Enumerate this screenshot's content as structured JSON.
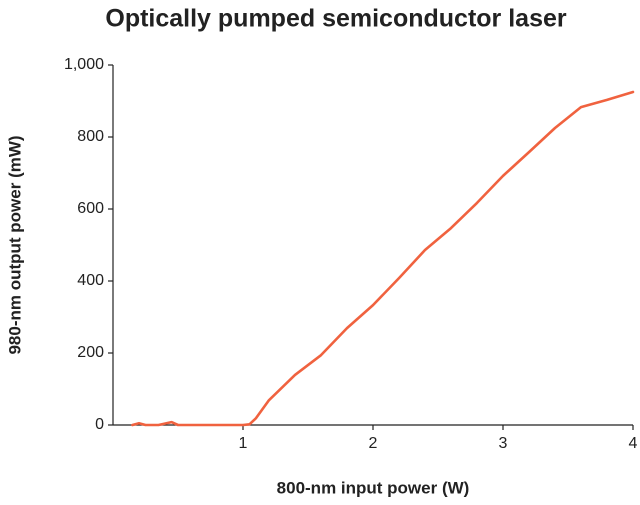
{
  "chart_data": {
    "type": "line",
    "title": "Optically pumped semiconductor laser",
    "x_label": "800-nm input power (W)",
    "y_label": "980-nm output power (mW)",
    "x": [
      0.15,
      0.2,
      0.25,
      0.35,
      0.45,
      0.5,
      0.7,
      0.9,
      1.0,
      1.05,
      1.1,
      1.2,
      1.4,
      1.6,
      1.8,
      2.0,
      2.2,
      2.4,
      2.6,
      2.8,
      3.0,
      3.2,
      3.4,
      3.6,
      3.8,
      4.0
    ],
    "values": [
      0,
      5,
      0,
      0,
      8,
      0,
      0,
      0,
      0,
      2,
      19,
      69,
      139,
      194,
      269,
      333,
      408,
      486,
      547,
      617,
      692,
      758,
      825,
      883,
      903,
      925
    ],
    "color": "#f0623f",
    "xlim": [
      0,
      4
    ],
    "xticks": [
      1,
      2,
      3,
      4
    ],
    "ylim": [
      0,
      1000
    ],
    "yticks": [
      0,
      200,
      400,
      600,
      800,
      {
        "value": 1000,
        "label": "1,000"
      }
    ]
  }
}
